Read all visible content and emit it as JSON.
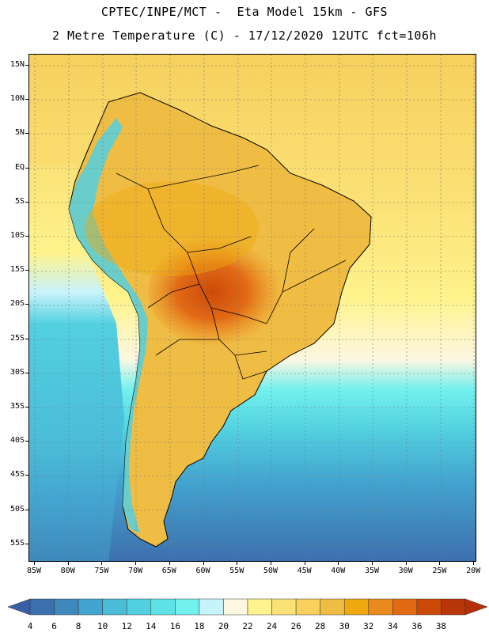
{
  "title_line1": "CPTEC/INPE/MCT -  Eta Model 15km - GFS",
  "title_line2": "2 Metre Temperature (C) - 17/12/2020 12UTC fct=106h",
  "lat_labels": [
    "15N",
    "10N",
    "5N",
    "EQ",
    "5S",
    "10S",
    "15S",
    "20S",
    "25S",
    "30S",
    "35S",
    "40S",
    "45S",
    "50S",
    "55S"
  ],
  "lon_labels": [
    "85W",
    "80W",
    "75W",
    "70W",
    "65W",
    "60W",
    "55W",
    "50W",
    "45W",
    "40W",
    "35W",
    "30W",
    "25W",
    "20W"
  ],
  "colorbar": {
    "labels": [
      "4",
      "6",
      "8",
      "10",
      "12",
      "14",
      "16",
      "18",
      "20",
      "22",
      "24",
      "26",
      "28",
      "30",
      "32",
      "34",
      "36",
      "38"
    ],
    "colors": [
      "#3c6fae",
      "#3f88bb",
      "#43a4cf",
      "#4bbcd8",
      "#52d0e0",
      "#5fe2e6",
      "#72f0ee",
      "#c8f3fb",
      "#fdf7e2",
      "#fef38c",
      "#fbe277",
      "#f7d05d",
      "#f0bd44",
      "#f0a80f",
      "#ea8a1c",
      "#e26a15",
      "#cc4a08",
      "#b8360a"
    ],
    "low_color": "#3a5fa6",
    "high_color": "#b33008"
  }
}
